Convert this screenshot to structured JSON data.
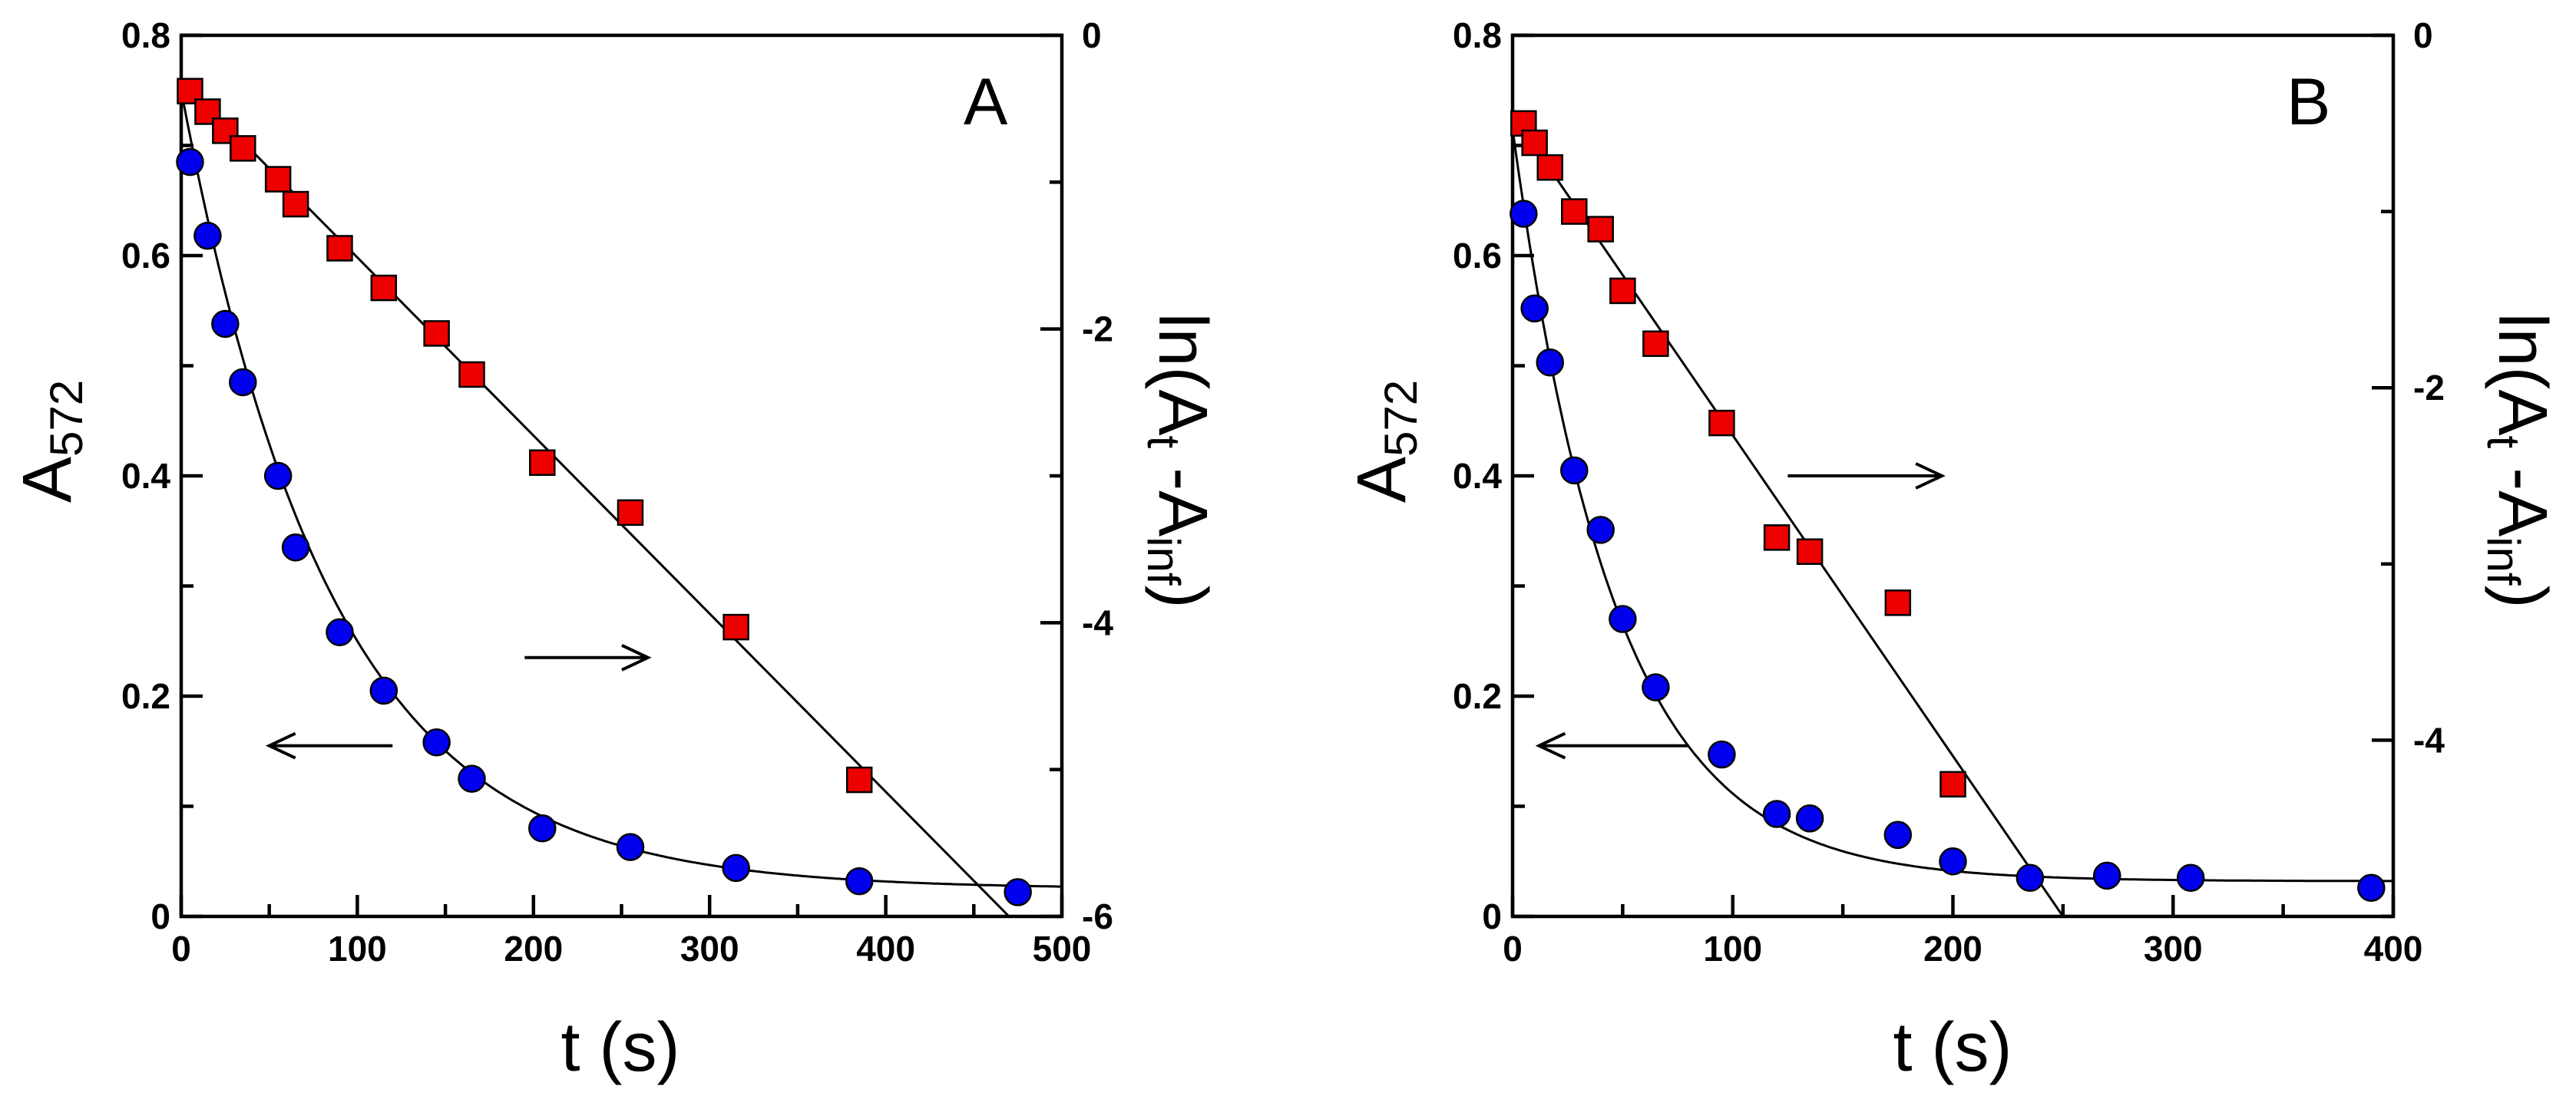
{
  "chart_data": [
    {
      "type": "scatter",
      "panel_label": "A",
      "xlabel": "t (s)",
      "ylabel_main": "A",
      "ylabel_sub": "572",
      "y2label": {
        "a": "ln(A",
        "b": "t",
        "c": " -A",
        "d": "inf",
        "e": ")"
      },
      "xlim": [
        0,
        500
      ],
      "ylim": [
        0,
        0.8
      ],
      "y2lim": [
        -6,
        0
      ],
      "x_ticks": [
        "0",
        "100",
        "200",
        "300",
        "400",
        "500"
      ],
      "y_ticks": [
        "0",
        "0.2",
        "0.4",
        "0.6",
        "0.8"
      ],
      "y2_ticks": [
        "-6",
        "-4",
        "-2",
        "0"
      ],
      "series": [
        {
          "name": "A572",
          "axis": "left",
          "marker": "circle",
          "color": "#0000ee",
          "x": [
            5,
            15,
            25,
            35,
            55,
            65,
            90,
            115,
            145,
            165,
            205,
            255,
            315,
            385,
            475
          ],
          "y": [
            0.685,
            0.618,
            0.538,
            0.485,
            0.4,
            0.335,
            0.258,
            0.205,
            0.158,
            0.125,
            0.08,
            0.063,
            0.044,
            0.032,
            0.022
          ],
          "fit": {
            "kind": "exponential",
            "a0": 0.75,
            "ainf": 0.025,
            "k": 0.0117
          }
        },
        {
          "name": "ln(At - Ainf)",
          "axis": "right",
          "marker": "square",
          "color": "#ee0000",
          "x": [
            5,
            15,
            25,
            35,
            55,
            65,
            90,
            115,
            145,
            165,
            205,
            255,
            315,
            385
          ],
          "y": [
            -0.38,
            -0.52,
            -0.65,
            -0.77,
            -0.98,
            -1.15,
            -1.45,
            -1.72,
            -2.03,
            -2.31,
            -2.91,
            -3.25,
            -4.03,
            -5.07
          ],
          "fit": {
            "kind": "linear",
            "x": [
              0,
              470
            ],
            "y": [
              -0.3,
              -6.0
            ]
          }
        }
      ],
      "annotations": [
        {
          "text": "arrow-right",
          "x1": 195,
          "x2": 265,
          "y": 0.235
        },
        {
          "text": "arrow-left",
          "x1": 120,
          "x2": 50,
          "y": 0.155
        }
      ]
    },
    {
      "type": "scatter",
      "panel_label": "B",
      "xlabel": "t (s)",
      "ylabel_main": "A",
      "ylabel_sub": "572",
      "y2label": {
        "a": "ln(A",
        "b": "t",
        "c": " -A",
        "d": "inf",
        "e": ")"
      },
      "xlim": [
        0,
        400
      ],
      "ylim": [
        0,
        0.8
      ],
      "y2lim": [
        -5,
        0
      ],
      "x_ticks": [
        "0",
        "100",
        "200",
        "300",
        "400"
      ],
      "y_ticks": [
        "0",
        "0.2",
        "0.4",
        "0.6",
        "0.8"
      ],
      "y2_ticks": [
        "-4",
        "-2",
        "0"
      ],
      "series": [
        {
          "name": "A572",
          "axis": "left",
          "marker": "circle",
          "color": "#0000ee",
          "x": [
            5,
            10,
            17,
            28,
            40,
            50,
            65,
            95,
            120,
            135,
            175,
            200,
            235,
            270,
            308,
            390
          ],
          "y": [
            0.638,
            0.552,
            0.503,
            0.405,
            0.351,
            0.27,
            0.208,
            0.147,
            0.093,
            0.089,
            0.074,
            0.05,
            0.035,
            0.037,
            0.035,
            0.026
          ],
          "fit": {
            "kind": "exponential",
            "a0": 0.715,
            "ainf": 0.032,
            "k": 0.0215
          }
        },
        {
          "name": "ln(At - Ainf)",
          "axis": "right",
          "marker": "square",
          "color": "#ee0000",
          "x": [
            5,
            10,
            17,
            28,
            40,
            50,
            65,
            95,
            120,
            135,
            175,
            200
          ],
          "y": [
            -0.5,
            -0.61,
            -0.75,
            -1.0,
            -1.1,
            -1.45,
            -1.75,
            -2.2,
            -2.85,
            -2.93,
            -3.22,
            -4.25
          ],
          "fit": {
            "kind": "linear",
            "x": [
              0,
              250
            ],
            "y": [
              -0.45,
              -5.0
            ]
          }
        }
      ],
      "annotations": [
        {
          "text": "arrow-right",
          "x1": 125,
          "x2": 195,
          "y": 0.4
        },
        {
          "text": "arrow-left",
          "x1": 80,
          "x2": 12,
          "y": 0.155
        }
      ]
    }
  ]
}
